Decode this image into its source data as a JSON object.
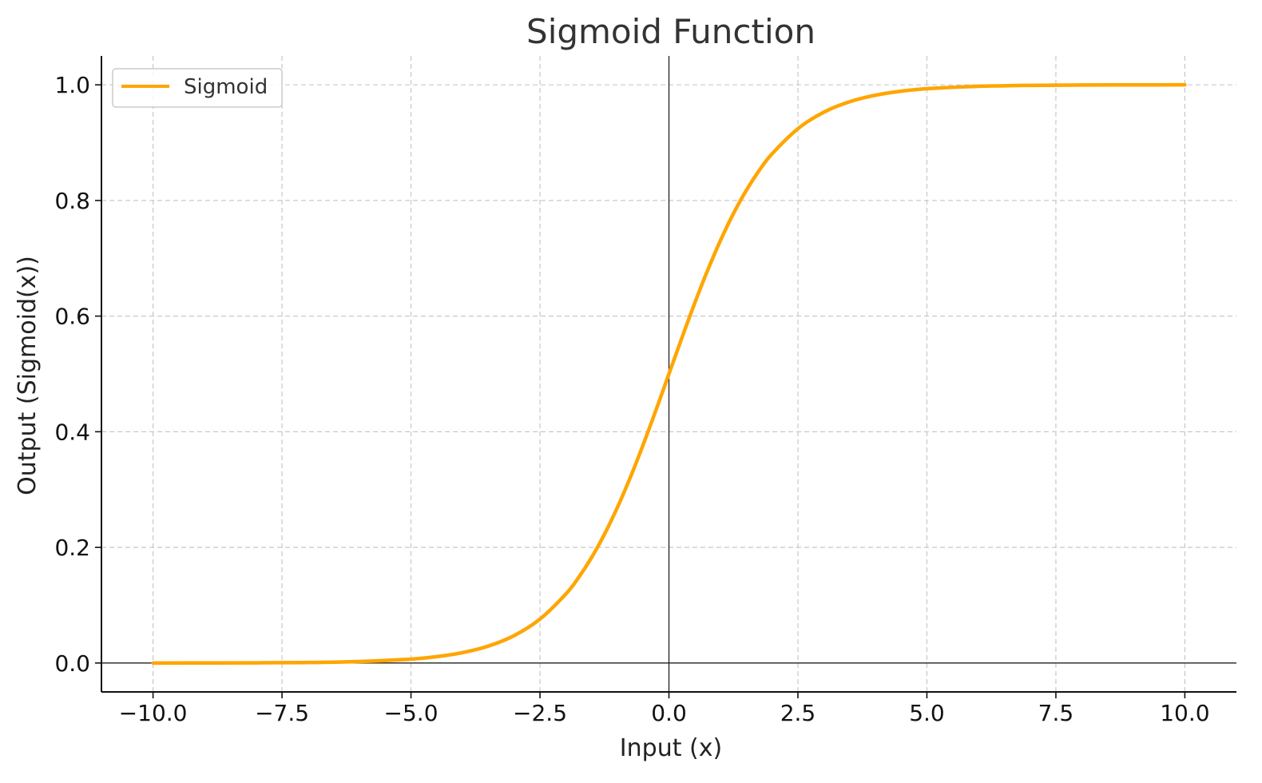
{
  "chart_data": {
    "type": "line",
    "title": "Sigmoid Function",
    "xlabel": "Input (x)",
    "ylabel": "Output (Sigmoid(x))",
    "xlim": [
      -11,
      11
    ],
    "ylim": [
      -0.05,
      1.05
    ],
    "x_ticks": [
      -10.0,
      -7.5,
      -5.0,
      -2.5,
      0.0,
      2.5,
      5.0,
      7.5,
      10.0
    ],
    "x_tick_labels": [
      "−10.0",
      "−7.5",
      "−5.0",
      "−2.5",
      "0.0",
      "2.5",
      "5.0",
      "7.5",
      "10.0"
    ],
    "y_ticks": [
      0.0,
      0.2,
      0.4,
      0.6,
      0.8,
      1.0
    ],
    "y_tick_labels": [
      "0.0",
      "0.2",
      "0.4",
      "0.6",
      "0.8",
      "1.0"
    ],
    "grid": true,
    "reference_lines": {
      "x": 0,
      "y": 0
    },
    "legend": {
      "position": "top-left"
    },
    "series": [
      {
        "name": "Sigmoid",
        "color": "#FFA500",
        "x": [
          -10,
          -9,
          -8,
          -7,
          -6,
          -5,
          -4.5,
          -4,
          -3.5,
          -3,
          -2.5,
          -2,
          -1.75,
          -1.5,
          -1.25,
          -1,
          -0.75,
          -0.5,
          -0.25,
          0,
          0.25,
          0.5,
          0.75,
          1,
          1.25,
          1.5,
          1.75,
          2,
          2.5,
          3,
          3.5,
          4,
          4.5,
          5,
          6,
          7,
          8,
          9,
          10
        ],
        "y": [
          0.0,
          0.0001,
          0.0003,
          0.0009,
          0.0025,
          0.0067,
          0.011,
          0.018,
          0.0293,
          0.0474,
          0.0759,
          0.1192,
          0.148,
          0.1824,
          0.2227,
          0.2689,
          0.3208,
          0.3775,
          0.4378,
          0.5,
          0.5622,
          0.6225,
          0.6792,
          0.7311,
          0.7773,
          0.8176,
          0.852,
          0.8808,
          0.9241,
          0.9526,
          0.9707,
          0.982,
          0.989,
          0.9933,
          0.9975,
          0.9991,
          0.9997,
          0.9999,
          1.0
        ]
      }
    ]
  }
}
